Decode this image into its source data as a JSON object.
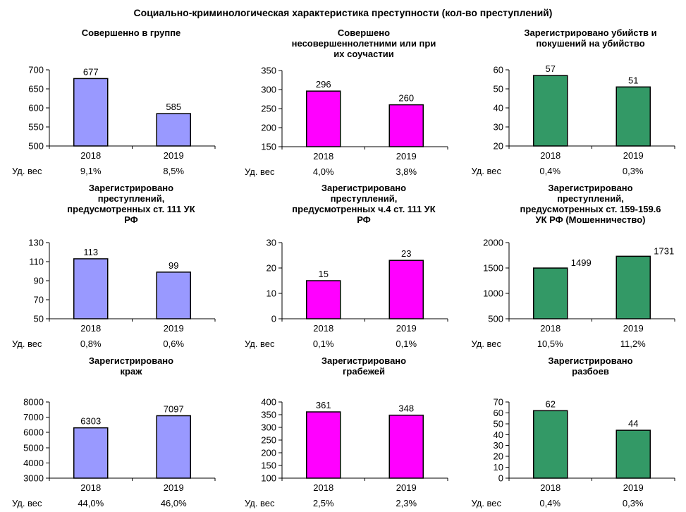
{
  "page_title": "Социально-криминологическая характеристика преступности (кол-во преступлений)",
  "ud_ves_label": "Уд. вес",
  "accent_colors": {
    "lavender": "#9999FF",
    "magenta": "#FF00FF",
    "sea_green": "#339966"
  },
  "chart_data": [
    {
      "type": "bar",
      "title": "Совершенно в группе",
      "title_lines": [
        "Совершенно в группе"
      ],
      "categories": [
        "2018",
        "2019"
      ],
      "values": [
        677,
        585
      ],
      "ylim": [
        500,
        700
      ],
      "yticks": [
        700,
        650,
        600,
        550,
        500
      ],
      "bar_color": "#9999FF",
      "data_label_position": "top",
      "ud_ves": [
        "9,1%",
        "8,5%"
      ]
    },
    {
      "type": "bar",
      "title": "Совершено несовершеннолетними или при их соучастии",
      "title_lines": [
        "Совершено",
        "несовершеннолетними или при",
        "их соучастии"
      ],
      "categories": [
        "2018",
        "2019"
      ],
      "values": [
        296,
        260
      ],
      "ylim": [
        150,
        350
      ],
      "yticks": [
        350,
        300,
        250,
        200,
        150
      ],
      "bar_color": "#FF00FF",
      "data_label_position": "top",
      "ud_ves": [
        "4,0%",
        "3,8%"
      ]
    },
    {
      "type": "bar",
      "title": "Зарегистрировано убийств и покушений на убийство",
      "title_lines": [
        "Зарегистрировано убийств и",
        "покушений на убийство"
      ],
      "categories": [
        "2018",
        "2019"
      ],
      "values": [
        57,
        51
      ],
      "ylim": [
        20,
        60
      ],
      "yticks": [
        60,
        50,
        40,
        30,
        20
      ],
      "bar_color": "#339966",
      "data_label_position": "top",
      "ud_ves": [
        "0,4%",
        "0,3%"
      ]
    },
    {
      "type": "bar",
      "title": "Зарегистрировано преступлений, предусмотренных ст. 111 УК РФ",
      "title_lines": [
        "Зарегистрировано",
        "преступлений,",
        "предусмотренных ст. 111 УК",
        "РФ"
      ],
      "categories": [
        "2018",
        "2019"
      ],
      "values": [
        113,
        99
      ],
      "ylim": [
        50,
        130
      ],
      "yticks": [
        130,
        110,
        90,
        70,
        50
      ],
      "bar_color": "#9999FF",
      "data_label_position": "top",
      "ud_ves": [
        "0,8%",
        "0,6%"
      ]
    },
    {
      "type": "bar",
      "title": "Зарегистрировано преступлений, предусмотренных ч.4 ст. 111 УК РФ",
      "title_lines": [
        "Зарегистрировано",
        "преступлений,",
        "предусмотренных ч.4 ст. 111 УК",
        "РФ"
      ],
      "categories": [
        "2018",
        "2019"
      ],
      "values": [
        15,
        23
      ],
      "ylim": [
        0,
        30
      ],
      "yticks": [
        30,
        20,
        10,
        0
      ],
      "bar_color": "#FF00FF",
      "data_label_position": "top",
      "ud_ves": [
        "0,1%",
        "0,1%"
      ]
    },
    {
      "type": "bar",
      "title": "Зарегистрировано преступлений, предусмотренных ст. 159-159.6 УК РФ (Мошенничество)",
      "title_lines": [
        "Зарегистрировано",
        "преступлений,",
        "предусмотренных ст. 159-159.6",
        "УК РФ (Мошенничество)"
      ],
      "categories": [
        "2018",
        "2019"
      ],
      "values": [
        1499,
        1731
      ],
      "ylim": [
        500,
        2000
      ],
      "yticks": [
        2000,
        1500,
        1000,
        500
      ],
      "bar_color": "#339966",
      "data_label_position": "right",
      "ud_ves": [
        "10,5%",
        "11,2%"
      ]
    },
    {
      "type": "bar",
      "title": "Зарегистрировано краж",
      "title_lines": [
        "Зарегистрировано",
        "краж"
      ],
      "categories": [
        "2018",
        "2019"
      ],
      "values": [
        6303,
        7097
      ],
      "ylim": [
        3000,
        8000
      ],
      "yticks": [
        8000,
        7000,
        6000,
        5000,
        4000,
        3000
      ],
      "bar_color": "#9999FF",
      "data_label_position": "top",
      "ud_ves": [
        "44,0%",
        "46,0%"
      ]
    },
    {
      "type": "bar",
      "title": "Зарегистрировано грабежей",
      "title_lines": [
        "Зарегистрировано",
        "грабежей"
      ],
      "categories": [
        "2018",
        "2019"
      ],
      "values": [
        361,
        348
      ],
      "ylim": [
        100,
        400
      ],
      "yticks": [
        400,
        350,
        300,
        250,
        200,
        150,
        100
      ],
      "bar_color": "#FF00FF",
      "data_label_position": "top",
      "ud_ves": [
        "2,5%",
        "2,3%"
      ]
    },
    {
      "type": "bar",
      "title": "Зарегистрировано разбоев",
      "title_lines": [
        "Зарегистрировано",
        "разбоев"
      ],
      "categories": [
        "2018",
        "2019"
      ],
      "values": [
        62,
        44
      ],
      "ylim": [
        0,
        70
      ],
      "yticks": [
        70,
        60,
        50,
        40,
        30,
        20,
        10,
        0
      ],
      "bar_color": "#339966",
      "data_label_position": "top",
      "ud_ves": [
        "0,4%",
        "0,3%"
      ]
    }
  ]
}
